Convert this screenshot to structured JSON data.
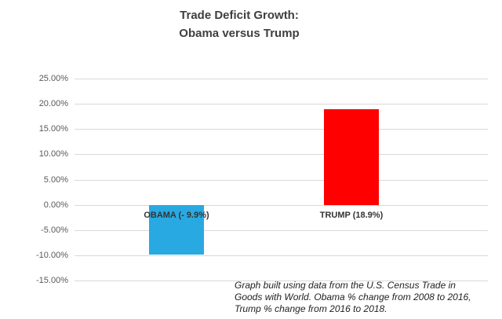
{
  "title": {
    "line1": "Trade Deficit Growth:",
    "line2": "Obama versus Trump"
  },
  "footnote": {
    "line1": "Graph built using data from the U.S. Census Trade in",
    "line2": "Goods with World. Obama % change from 2008 to 2016,",
    "line3": "Trump % change from 2016 to 2018."
  },
  "chart_data": {
    "type": "bar",
    "title": "Trade Deficit Growth: Obama versus Trump",
    "categories": [
      "OBAMA",
      "TRUMP"
    ],
    "values": [
      -9.9,
      18.9
    ],
    "bar_labels": [
      "OBAMA (- 9.9%)",
      "TRUMP (18.9%)"
    ],
    "bar_colors": [
      "#29a9e1",
      "#fe0000"
    ],
    "xlabel": "",
    "ylabel": "",
    "ylim": [
      -15,
      25
    ],
    "ytick_step": 5,
    "yticks": [
      {
        "value": 25,
        "label": "25.00%"
      },
      {
        "value": 20,
        "label": "20.00%"
      },
      {
        "value": 15,
        "label": "15.00%"
      },
      {
        "value": 10,
        "label": "10.00%"
      },
      {
        "value": 5,
        "label": "5.00%"
      },
      {
        "value": 0,
        "label": "0.00%"
      },
      {
        "value": -5,
        "label": "-5.00%"
      },
      {
        "value": -10,
        "label": "-10.00%"
      },
      {
        "value": -15,
        "label": "-15.00%"
      }
    ],
    "grid": true,
    "legend": false
  }
}
